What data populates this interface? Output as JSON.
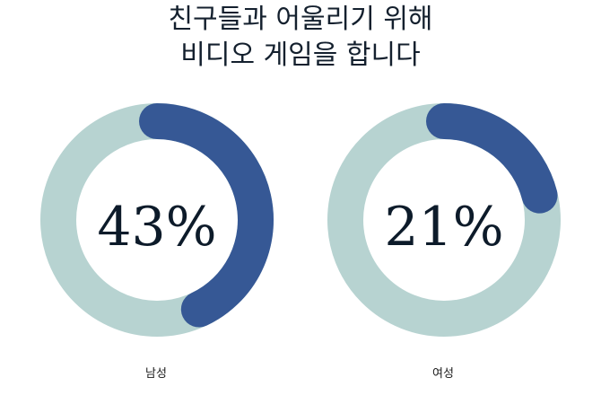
{
  "chart_data": {
    "type": "donut",
    "title_lines": [
      "친구들과 어울리기 위해",
      "비디오 게임을 합니다"
    ],
    "categories": [
      "남성",
      "여성"
    ],
    "values": [
      43,
      21
    ],
    "value_labels": [
      "43%",
      "21%"
    ],
    "max": 100,
    "colors": {
      "value": "#365895",
      "track": "#b7d3d1"
    }
  }
}
